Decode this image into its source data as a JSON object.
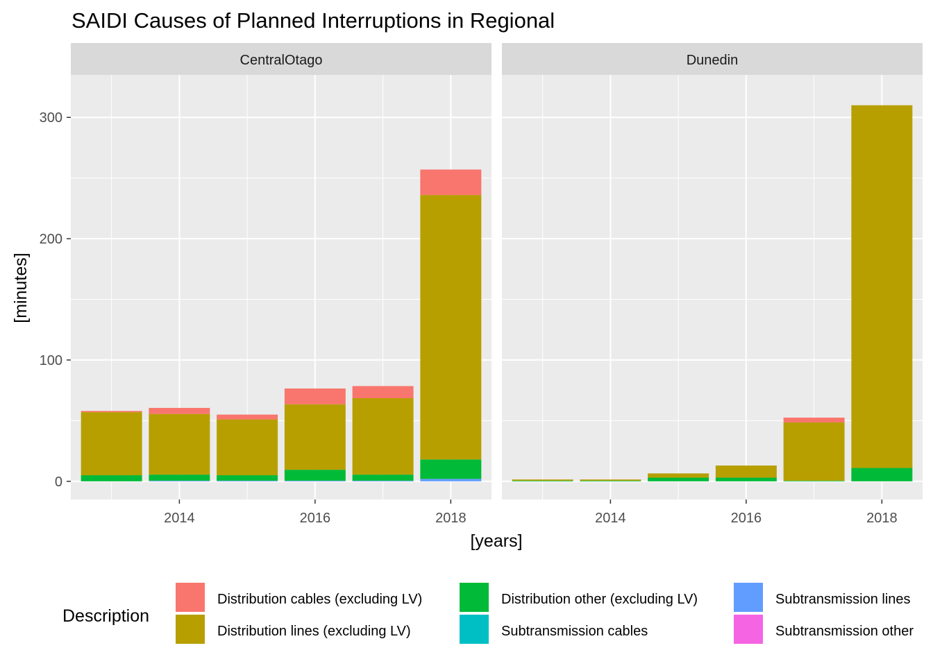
{
  "chart_data": {
    "type": "bar",
    "stacked": true,
    "title": "SAIDI Causes of Planned Interruptions in Regional",
    "xlabel": "[years]",
    "ylabel": "[minutes]",
    "x_ticks": [
      2014,
      2016,
      2018
    ],
    "y_ticks": [
      0,
      100,
      200,
      300
    ],
    "xlim": [
      2012.4,
      2018.6
    ],
    "ylim": [
      -15,
      335
    ],
    "grid": true,
    "legend": {
      "title": "Description",
      "placement": "bottom",
      "entries": [
        {
          "name": "Distribution cables (excluding LV)",
          "color": "#F8766D"
        },
        {
          "name": "Distribution lines (excluding LV)",
          "color": "#B79F00"
        },
        {
          "name": "Distribution other (excluding LV)",
          "color": "#00BA38"
        },
        {
          "name": "Subtransmission cables",
          "color": "#00BFC4"
        },
        {
          "name": "Subtransmission lines",
          "color": "#619CFF"
        },
        {
          "name": "Subtransmission other",
          "color": "#F564E3"
        }
      ]
    },
    "stack_order": [
      "Subtransmission other",
      "Subtransmission lines",
      "Subtransmission cables",
      "Distribution other (excluding LV)",
      "Distribution lines (excluding LV)",
      "Distribution cables (excluding LV)"
    ],
    "panels": [
      {
        "name": "CentralOtago",
        "x": [
          2013,
          2014,
          2015,
          2016,
          2017,
          2018
        ],
        "series": [
          {
            "name": "Distribution cables (excluding LV)",
            "values": [
              1,
              5,
              4,
              13,
              10,
              21
            ]
          },
          {
            "name": "Distribution lines (excluding LV)",
            "values": [
              52,
              50,
              46,
              54,
              63,
              218
            ]
          },
          {
            "name": "Distribution other (excluding LV)",
            "values": [
              5,
              5,
              4.5,
              9,
              5,
              16
            ]
          },
          {
            "name": "Subtransmission cables",
            "values": [
              0,
              0,
              0,
              0,
              0,
              0
            ]
          },
          {
            "name": "Subtransmission lines",
            "values": [
              0,
              0.5,
              0.5,
              0.5,
              0.5,
              2
            ]
          },
          {
            "name": "Subtransmission other",
            "values": [
              0,
              0,
              0,
              0,
              0,
              0
            ]
          }
        ]
      },
      {
        "name": "Dunedin",
        "x": [
          2013,
          2014,
          2015,
          2016,
          2017,
          2018
        ],
        "series": [
          {
            "name": "Distribution cables (excluding LV)",
            "values": [
              0,
              0,
              0,
              0,
              4,
              0
            ]
          },
          {
            "name": "Distribution lines (excluding LV)",
            "values": [
              1,
              1,
              3.5,
              10,
              48,
              299
            ]
          },
          {
            "name": "Distribution other (excluding LV)",
            "values": [
              0.5,
              0.5,
              3,
              3,
              0.5,
              11
            ]
          },
          {
            "name": "Subtransmission cables",
            "values": [
              0,
              0,
              0,
              0,
              0,
              0
            ]
          },
          {
            "name": "Subtransmission lines",
            "values": [
              0,
              0,
              0,
              0,
              0,
              0
            ]
          },
          {
            "name": "Subtransmission other",
            "values": [
              0,
              0,
              0,
              0,
              0,
              0
            ]
          }
        ]
      }
    ]
  }
}
